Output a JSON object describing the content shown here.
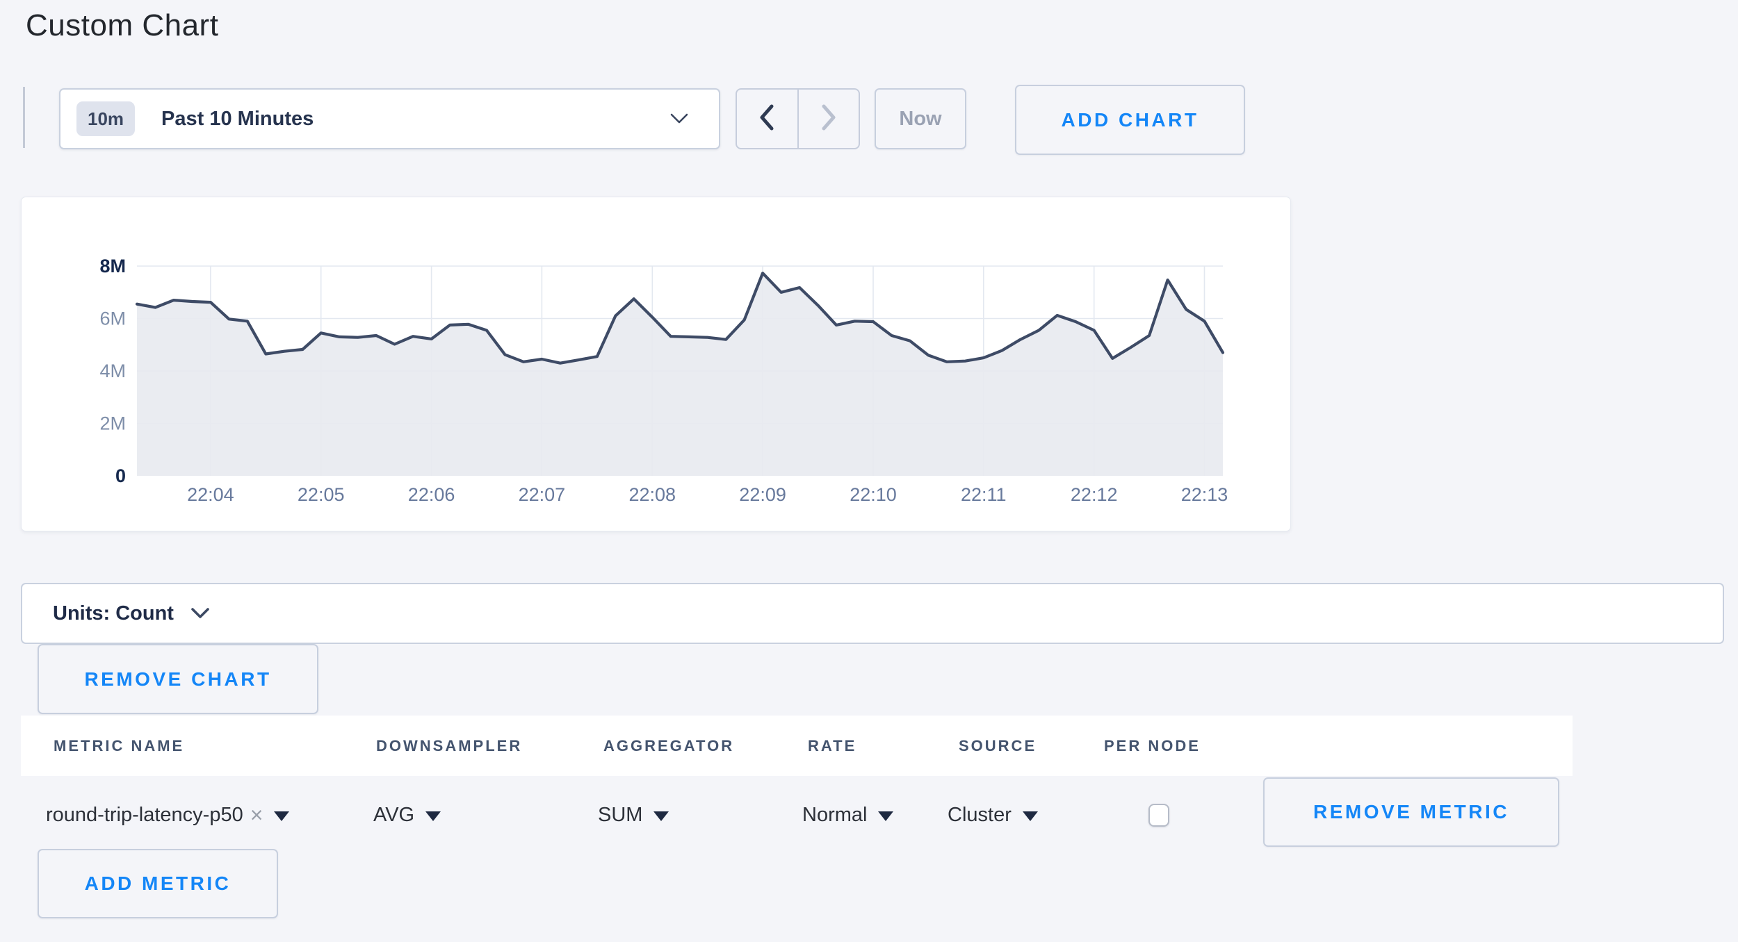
{
  "page": {
    "title": "Custom Chart"
  },
  "palette": {
    "accent_blue": "#1486f7",
    "line_color": "#3e4b66",
    "area_fill": "#e8eaf0",
    "grid_color": "#e3e8f0",
    "axis_label_muted": "#7e8ea9",
    "axis_label_bold": "#16294e",
    "x_label_color": "#67799c"
  },
  "toolbar": {
    "time_scale_badge": "10m",
    "time_scale_label": "Past 10 Minutes",
    "now_label": "Now",
    "add_chart_label": "ADD CHART"
  },
  "chart_data": {
    "type": "area",
    "title": "",
    "xlabel": "",
    "ylabel": "",
    "unit": "Count",
    "grid": true,
    "legend": "none",
    "ylim_millions": [
      0,
      8
    ],
    "y_ticks": [
      {
        "label": "0",
        "value": 0,
        "bold": true
      },
      {
        "label": "2M",
        "value": 2,
        "bold": false
      },
      {
        "label": "4M",
        "value": 4,
        "bold": false
      },
      {
        "label": "6M",
        "value": 6,
        "bold": false
      },
      {
        "label": "8M",
        "value": 8,
        "bold": true
      }
    ],
    "x_tick_labels": [
      "22:04",
      "22:05",
      "22:06",
      "22:07",
      "22:08",
      "22:09",
      "22:10",
      "22:11",
      "22:12",
      "22:13"
    ],
    "x_tick_start_index": 4,
    "x_tick_step": 6,
    "series": [
      {
        "name": "round-trip-latency-p50",
        "values_in_millions": [
          6.55,
          6.42,
          6.7,
          6.65,
          6.62,
          5.98,
          5.9,
          4.65,
          4.75,
          4.82,
          5.45,
          5.3,
          5.28,
          5.35,
          5.02,
          5.32,
          5.22,
          5.75,
          5.78,
          5.55,
          4.62,
          4.35,
          4.45,
          4.3,
          4.42,
          4.55,
          6.1,
          6.75,
          6.05,
          5.32,
          5.3,
          5.28,
          5.2,
          5.95,
          7.73,
          7.0,
          7.18,
          6.5,
          5.75,
          5.9,
          5.88,
          5.35,
          5.15,
          4.6,
          4.35,
          4.38,
          4.5,
          4.78,
          5.2,
          5.55,
          6.12,
          5.88,
          5.55,
          4.48,
          4.9,
          5.35,
          7.47,
          6.35,
          5.9,
          4.7
        ]
      }
    ]
  },
  "units_bar": {
    "label": "Units: Count"
  },
  "chart_actions": {
    "remove_chart_label": "REMOVE CHART"
  },
  "metrics_table": {
    "headers": [
      "METRIC NAME",
      "DOWNSAMPLER",
      "AGGREGATOR",
      "RATE",
      "SOURCE",
      "PER NODE"
    ],
    "rows": [
      {
        "metric_name": "round-trip-latency-p50",
        "remove_tag": "×",
        "downsampler": "AVG",
        "aggregator": "SUM",
        "rate": "Normal",
        "source": "Cluster",
        "per_node_checked": false,
        "remove_label": "REMOVE METRIC"
      }
    ],
    "add_metric_label": "ADD METRIC"
  }
}
